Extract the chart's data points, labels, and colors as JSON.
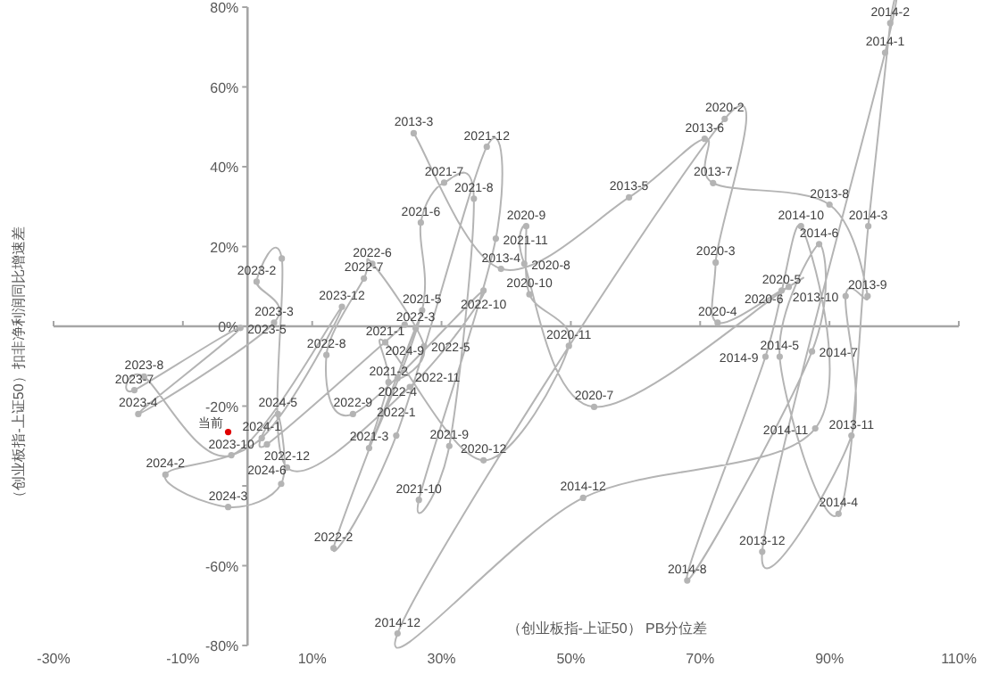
{
  "chart_data": {
    "type": "line",
    "xlabel": "（创业板指-上证50） PB分位差",
    "ylabel": "（创业板指-上证50）扣非净利润同比增速差",
    "xlim": [
      -30,
      110
    ],
    "ylim": [
      -80,
      80
    ],
    "xticks": [
      {
        "value": -30,
        "label": "-30%"
      },
      {
        "value": -10,
        "label": "-10%"
      },
      {
        "value": 10,
        "label": "10%"
      },
      {
        "value": 30,
        "label": "30%"
      },
      {
        "value": 50,
        "label": "50%"
      },
      {
        "value": 70,
        "label": "70%"
      },
      {
        "value": 90,
        "label": "90%"
      },
      {
        "value": 110,
        "label": "110%"
      }
    ],
    "yticks": [
      {
        "value": -80,
        "label": "-80%"
      },
      {
        "value": -60,
        "label": "-60%"
      },
      {
        "value": -40,
        "label": null
      },
      {
        "value": -20,
        "label": "-20%"
      },
      {
        "value": 0,
        "label": "0%"
      },
      {
        "value": 20,
        "label": "20%"
      },
      {
        "value": 40,
        "label": "40%"
      },
      {
        "value": 60,
        "label": "60%"
      },
      {
        "value": 80,
        "label": "80%"
      }
    ],
    "marker": "circle",
    "line_style": "solid",
    "series": [
      {
        "type": "line",
        "color": "#b4b4b4",
        "x": [
          25.7,
          39.2,
          59,
          70.7,
          72,
          90,
          95.9,
          92.5,
          93.4,
          79.6,
          98.6,
          99.4,
          96,
          91.4,
          82.3,
          88.4,
          87.3,
          68,
          80.1,
          85.6,
          87.8,
          51.9,
          23.2,
          73.8,
          72.4,
          72.7,
          82.6,
          83.7,
          53.6,
          42.8,
          43.1,
          43.6,
          49.7,
          36.5,
          21.3,
          21.8,
          18.8,
          27,
          26.8,
          30.4,
          35,
          31.2,
          26.5,
          38.4,
          37,
          23,
          13.3,
          26,
          23.2,
          27.3,
          19.3,
          18,
          12.2,
          16.3,
          36.5,
          25.1,
          6.1,
          5.3,
          1.4,
          4.1,
          -16.9,
          -1.1,
          -17.5,
          -16,
          -2.5,
          14.6,
          2.2,
          -12.7,
          -3,
          5.2,
          4.7,
          3,
          24.3
        ],
        "values": [
          48.4,
          14.4,
          32.3,
          47,
          35.9,
          30.5,
          7.6,
          7.6,
          -27.4,
          -56.5,
          68.6,
          76,
          25.1,
          -47,
          -7.6,
          20.6,
          -6.3,
          -63.7,
          -7.6,
          25.1,
          -25.6,
          -43,
          -77,
          52,
          16,
          0.9,
          9,
          9.9,
          -20.2,
          15.7,
          25.1,
          8,
          -4.9,
          -33.6,
          -4,
          -14,
          -30.5,
          4,
          26,
          36,
          32,
          -30,
          -43.5,
          22,
          45,
          -27.4,
          -55.6,
          -0.5,
          -13,
          -5,
          15.7,
          12,
          -7.2,
          -22,
          9,
          -15.2,
          -35.4,
          17,
          11.2,
          0.9,
          -22,
          -0.4,
          -16,
          -12.6,
          -32.3,
          4.9,
          -28,
          -37.2,
          -45.3,
          -39.5,
          -22,
          -29.6,
          0.4
        ]
      },
      {
        "type": "scatter",
        "color": "#e00000",
        "x": [
          -3
        ],
        "values": [
          -26.5
        ]
      }
    ],
    "annotations": [
      {
        "text": "2013-3",
        "x": 25.7,
        "y": 48.4
      },
      {
        "text": "2013-4",
        "x": 39.2,
        "y": 14.4
      },
      {
        "text": "2013-5",
        "x": 59,
        "y": 32.3
      },
      {
        "text": "2013-6",
        "x": 70.7,
        "y": 47
      },
      {
        "text": "2013-7",
        "x": 72,
        "y": 35.9
      },
      {
        "text": "2013-8",
        "x": 90,
        "y": 30.5
      },
      {
        "text": "2013-9",
        "x": 95.9,
        "y": 7.6
      },
      {
        "text": "2013-10",
        "x": 92.5,
        "y": 7.6
      },
      {
        "text": "2013-11",
        "x": 93.4,
        "y": -27.4
      },
      {
        "text": "2013-12",
        "x": 79.6,
        "y": -56.5
      },
      {
        "text": "2014-1",
        "x": 98.6,
        "y": 68.6
      },
      {
        "text": "2014-2",
        "x": 99.4,
        "y": 76
      },
      {
        "text": "2014-3",
        "x": 96,
        "y": 25.1
      },
      {
        "text": "2014-4",
        "x": 91.4,
        "y": -47
      },
      {
        "text": "2014-5",
        "x": 82.3,
        "y": -7.6
      },
      {
        "text": "2014-6",
        "x": 88.4,
        "y": 20.6
      },
      {
        "text": "2014-7",
        "x": 87.3,
        "y": -6.3
      },
      {
        "text": "2014-8",
        "x": 68,
        "y": -63.7
      },
      {
        "text": "2014-9",
        "x": 80.1,
        "y": -7.6
      },
      {
        "text": "2014-10",
        "x": 85.6,
        "y": 25.1
      },
      {
        "text": "2014-11",
        "x": 87.8,
        "y": -25.6
      },
      {
        "text": "2014-12",
        "x": 51.9,
        "y": -43
      },
      {
        "text": "2014-12",
        "x": 23.2,
        "y": -77
      },
      {
        "text": "2020-2",
        "x": 73.8,
        "y": 52
      },
      {
        "text": "2020-3",
        "x": 72.4,
        "y": 16
      },
      {
        "text": "2020-4",
        "x": 72.7,
        "y": 0.9
      },
      {
        "text": "2020-5",
        "x": 82.6,
        "y": 9
      },
      {
        "text": "2020-6",
        "x": 83.7,
        "y": 9.9
      },
      {
        "text": "2020-7",
        "x": 53.6,
        "y": -20.2
      },
      {
        "text": "2020-8",
        "x": 42.8,
        "y": 15.7
      },
      {
        "text": "2020-9",
        "x": 43.1,
        "y": 25.1
      },
      {
        "text": "2020-10",
        "x": 43.6,
        "y": 8
      },
      {
        "text": "2020-11",
        "x": 49.7,
        "y": -4.9
      },
      {
        "text": "2020-12",
        "x": 36.5,
        "y": -33.6
      },
      {
        "text": "2021-1",
        "x": 21.3,
        "y": -4
      },
      {
        "text": "2021-2",
        "x": 21.8,
        "y": -14
      },
      {
        "text": "2021-3",
        "x": 18.8,
        "y": -30.5
      },
      {
        "text": "2021-5",
        "x": 27,
        "y": 4
      },
      {
        "text": "2021-6",
        "x": 26.8,
        "y": 26
      },
      {
        "text": "2021-7",
        "x": 30.4,
        "y": 36
      },
      {
        "text": "2021-8",
        "x": 35,
        "y": 32
      },
      {
        "text": "2021-9",
        "x": 31.2,
        "y": -30
      },
      {
        "text": "2021-10",
        "x": 26.5,
        "y": -43.5
      },
      {
        "text": "2021-11",
        "x": 38.4,
        "y": 22
      },
      {
        "text": "2021-12",
        "x": 37,
        "y": 45
      },
      {
        "text": "2022-1",
        "x": 23,
        "y": -27.4
      },
      {
        "text": "2022-2",
        "x": 13.3,
        "y": -55.6
      },
      {
        "text": "2022-3",
        "x": 26,
        "y": -0.5
      },
      {
        "text": "2022-4",
        "x": 23.2,
        "y": -13
      },
      {
        "text": "2022-5",
        "x": 27.3,
        "y": -5
      },
      {
        "text": "2022-6",
        "x": 19.3,
        "y": 15.7
      },
      {
        "text": "2022-7",
        "x": 18,
        "y": 12
      },
      {
        "text": "2022-8",
        "x": 12.2,
        "y": -7.2
      },
      {
        "text": "2022-9",
        "x": 16.3,
        "y": -22
      },
      {
        "text": "2022-10",
        "x": 36.5,
        "y": 9
      },
      {
        "text": "2022-11",
        "x": 25.1,
        "y": -15.2
      },
      {
        "text": "2022-12",
        "x": 6.1,
        "y": -35.4
      },
      {
        "text": "2023-2",
        "x": 1.4,
        "y": 11.2
      },
      {
        "text": "2023-3",
        "x": 4.1,
        "y": 0.9
      },
      {
        "text": "2023-4",
        "x": -16.9,
        "y": -22
      },
      {
        "text": "2023-5",
        "x": -1.1,
        "y": -0.4
      },
      {
        "text": "2023-7",
        "x": -17.5,
        "y": -16
      },
      {
        "text": "2023-8",
        "x": -16,
        "y": -12.6
      },
      {
        "text": "2023-10",
        "x": -2.5,
        "y": -32.3
      },
      {
        "text": "2023-12",
        "x": 14.6,
        "y": 4.9
      },
      {
        "text": "2024-1",
        "x": 2.2,
        "y": -28
      },
      {
        "text": "2024-2",
        "x": -12.7,
        "y": -37.2
      },
      {
        "text": "2024-3",
        "x": -3,
        "y": -45.3
      },
      {
        "text": "2024-5",
        "x": 4.7,
        "y": -22
      },
      {
        "text": "2024-6",
        "x": 3,
        "y": -29.6
      },
      {
        "text": "2024-9",
        "x": 24.3,
        "y": 0.4
      },
      {
        "text": "当前",
        "x": -3,
        "y": -26.5
      }
    ]
  }
}
